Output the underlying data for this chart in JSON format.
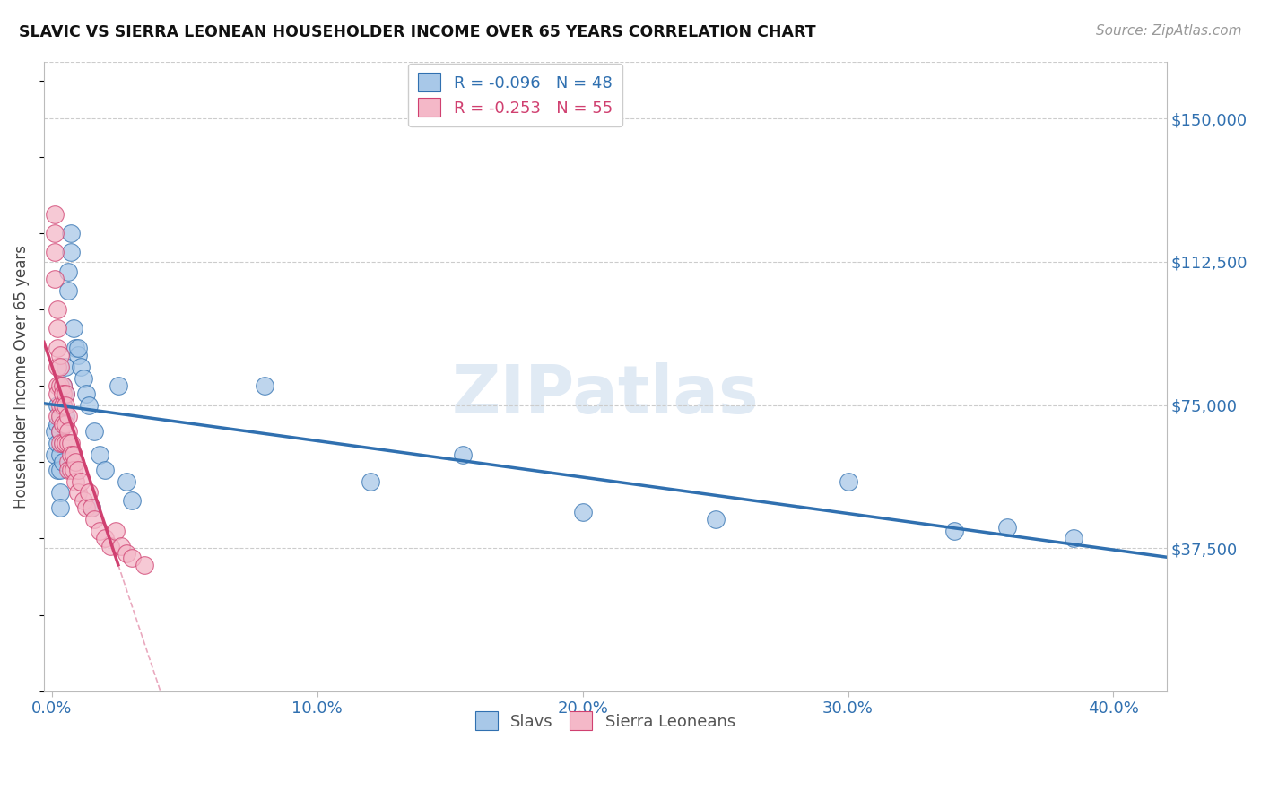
{
  "title": "SLAVIC VS SIERRA LEONEAN HOUSEHOLDER INCOME OVER 65 YEARS CORRELATION CHART",
  "source": "Source: ZipAtlas.com",
  "ylabel": "Householder Income Over 65 years",
  "xlabel_ticks": [
    "0.0%",
    "10.0%",
    "20.0%",
    "30.0%",
    "40.0%"
  ],
  "xlabel_vals": [
    0.0,
    0.1,
    0.2,
    0.3,
    0.4
  ],
  "ylabel_ticks": [
    "$37,500",
    "$75,000",
    "$112,500",
    "$150,000"
  ],
  "ylabel_vals": [
    37500,
    75000,
    112500,
    150000
  ],
  "ylim": [
    0,
    165000
  ],
  "xlim": [
    -0.003,
    0.42
  ],
  "slavs_color": "#a8c8e8",
  "sierra_color": "#f4b8c8",
  "slavs_line_color": "#3070b0",
  "sierra_line_color": "#d04070",
  "slavs_x": [
    0.001,
    0.001,
    0.002,
    0.002,
    0.002,
    0.002,
    0.003,
    0.003,
    0.003,
    0.003,
    0.003,
    0.003,
    0.004,
    0.004,
    0.004,
    0.004,
    0.004,
    0.005,
    0.005,
    0.005,
    0.006,
    0.006,
    0.007,
    0.007,
    0.008,
    0.009,
    0.01,
    0.011,
    0.012,
    0.013,
    0.014,
    0.016,
    0.018,
    0.02,
    0.025,
    0.028,
    0.03,
    0.08,
    0.12,
    0.155,
    0.2,
    0.25,
    0.3,
    0.34,
    0.36,
    0.385,
    0.01,
    0.015
  ],
  "slavs_y": [
    68000,
    62000,
    75000,
    70000,
    65000,
    58000,
    72000,
    68000,
    62000,
    58000,
    52000,
    48000,
    80000,
    75000,
    70000,
    65000,
    60000,
    85000,
    78000,
    72000,
    110000,
    105000,
    120000,
    115000,
    95000,
    90000,
    88000,
    85000,
    82000,
    78000,
    75000,
    68000,
    62000,
    58000,
    80000,
    55000,
    50000,
    80000,
    55000,
    62000,
    47000,
    45000,
    55000,
    42000,
    43000,
    40000,
    90000,
    48000
  ],
  "sierra_x": [
    0.001,
    0.001,
    0.001,
    0.001,
    0.002,
    0.002,
    0.002,
    0.002,
    0.002,
    0.002,
    0.002,
    0.003,
    0.003,
    0.003,
    0.003,
    0.003,
    0.003,
    0.003,
    0.004,
    0.004,
    0.004,
    0.004,
    0.004,
    0.005,
    0.005,
    0.005,
    0.005,
    0.006,
    0.006,
    0.006,
    0.006,
    0.006,
    0.007,
    0.007,
    0.007,
    0.008,
    0.008,
    0.009,
    0.009,
    0.01,
    0.01,
    0.011,
    0.012,
    0.013,
    0.014,
    0.015,
    0.016,
    0.018,
    0.02,
    0.022,
    0.024,
    0.026,
    0.028,
    0.03,
    0.035
  ],
  "sierra_y": [
    125000,
    120000,
    115000,
    108000,
    100000,
    95000,
    90000,
    85000,
    80000,
    78000,
    72000,
    88000,
    85000,
    80000,
    75000,
    72000,
    68000,
    65000,
    80000,
    78000,
    75000,
    70000,
    65000,
    78000,
    75000,
    70000,
    65000,
    72000,
    68000,
    65000,
    60000,
    58000,
    65000,
    62000,
    58000,
    62000,
    58000,
    60000,
    55000,
    58000,
    52000,
    55000,
    50000,
    48000,
    52000,
    48000,
    45000,
    42000,
    40000,
    38000,
    42000,
    38000,
    36000,
    35000,
    33000
  ]
}
